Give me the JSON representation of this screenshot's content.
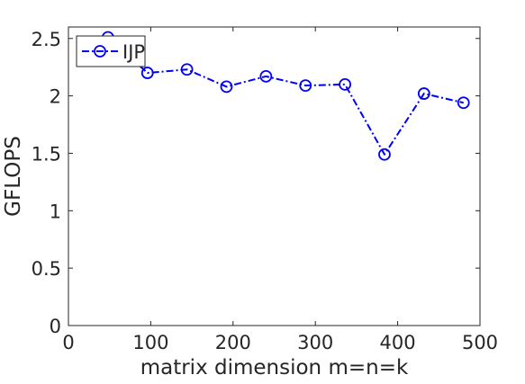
{
  "chart_data": {
    "type": "line",
    "xlabel": "matrix dimension m=n=k",
    "ylabel": "GFLOPS",
    "xlim": [
      0,
      500
    ],
    "ylim": [
      0,
      2.6
    ],
    "xticks": [
      0,
      100,
      200,
      300,
      400,
      500
    ],
    "yticks": [
      0,
      0.5,
      1,
      1.5,
      2,
      2.5
    ],
    "xtick_labels": [
      "0",
      "100",
      "200",
      "300",
      "400",
      "500"
    ],
    "ytick_labels": [
      "0",
      "0.5",
      "1",
      "1.5",
      "2",
      "2.5"
    ],
    "grid": false,
    "legend_position": "top-left",
    "series": [
      {
        "name": "IJP",
        "color": "#0000ff",
        "line_style": "dash-dot",
        "marker": "circle",
        "x": [
          48,
          96,
          144,
          192,
          240,
          288,
          336,
          384,
          432,
          480
        ],
        "y": [
          2.51,
          2.2,
          2.23,
          2.08,
          2.17,
          2.09,
          2.1,
          1.49,
          2.02,
          1.94
        ]
      }
    ]
  }
}
